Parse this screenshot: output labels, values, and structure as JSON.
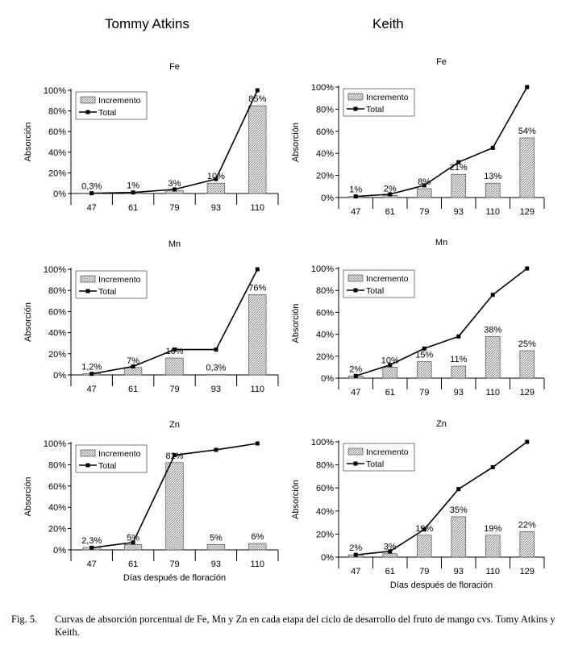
{
  "columns": {
    "left": "Tommy Atkins",
    "right": "Keith"
  },
  "caption": {
    "label": "Fig. 5.",
    "text": "Curvas de absorción porcentual de Fe, Mn y Zn en cada etapa del ciclo de desarrollo del fruto de mango cvs. Tomy Atkins y Keith."
  },
  "chart_data": [
    {
      "type": "bar",
      "cultivar": "Tommy Atkins",
      "title": "Fe",
      "ylabel": "Absorción",
      "xlabel": "",
      "categories": [
        "47",
        "61",
        "79",
        "93",
        "110"
      ],
      "yticks": [
        "0%",
        "20%",
        "40%",
        "60%",
        "80%",
        "100%"
      ],
      "ylim": [
        0,
        100
      ],
      "series": [
        {
          "name": "Incremento",
          "values": [
            0.3,
            1,
            3,
            10,
            85
          ],
          "labels": [
            "0,3%",
            "1%",
            "3%",
            "10%",
            "85%"
          ]
        },
        {
          "name": "Total",
          "values": [
            0.3,
            1,
            4,
            14,
            100
          ]
        }
      ],
      "legend": "top-left",
      "grid": false
    },
    {
      "type": "bar",
      "cultivar": "Keith",
      "title": "Fe",
      "ylabel": "Absorción",
      "xlabel": "",
      "categories": [
        "47",
        "61",
        "79",
        "93",
        "110",
        "129"
      ],
      "yticks": [
        "0%",
        "20%",
        "40%",
        "60%",
        "80%",
        "100%"
      ],
      "ylim": [
        0,
        100
      ],
      "series": [
        {
          "name": "Incremento",
          "values": [
            1,
            2,
            8,
            21,
            13,
            54
          ],
          "labels": [
            "1%",
            "2%",
            "8%",
            "21%",
            "13%",
            "54%"
          ]
        },
        {
          "name": "Total",
          "values": [
            1,
            3,
            11,
            32,
            45,
            100
          ]
        }
      ],
      "legend": "top-left",
      "grid": false
    },
    {
      "type": "bar",
      "cultivar": "Tommy Atkins",
      "title": "Mn",
      "ylabel": "Absorción",
      "xlabel": "",
      "categories": [
        "47",
        "61",
        "79",
        "93",
        "110"
      ],
      "yticks": [
        "0%",
        "20%",
        "40%",
        "60%",
        "80%",
        "100%"
      ],
      "ylim": [
        0,
        100
      ],
      "series": [
        {
          "name": "Incremento",
          "values": [
            1.2,
            7,
            16,
            0.3,
            76
          ],
          "labels": [
            "1,2%",
            "7%",
            "16%",
            "0,3%",
            "76%"
          ]
        },
        {
          "name": "Total",
          "values": [
            1,
            8,
            24,
            24,
            100
          ]
        }
      ],
      "legend": "top-left",
      "grid": false
    },
    {
      "type": "bar",
      "cultivar": "Keith",
      "title": "Mn",
      "ylabel": "Absorción",
      "xlabel": "",
      "categories": [
        "47",
        "61",
        "79",
        "93",
        "110",
        "129"
      ],
      "yticks": [
        "0%",
        "20%",
        "40%",
        "60%",
        "80%",
        "100%"
      ],
      "ylim": [
        0,
        100
      ],
      "series": [
        {
          "name": "Incremento",
          "values": [
            2,
            10,
            15,
            11,
            38,
            25
          ],
          "labels": [
            "2%",
            "10%",
            "15%",
            "11%",
            "38%",
            "25%"
          ]
        },
        {
          "name": "Total",
          "values": [
            2,
            12,
            27,
            38,
            76,
            100
          ]
        }
      ],
      "legend": "top-left",
      "grid": false
    },
    {
      "type": "bar",
      "cultivar": "Tommy Atkins",
      "title": "Zn",
      "ylabel": "Absorción",
      "xlabel": "Días después de floración",
      "categories": [
        "47",
        "61",
        "79",
        "93",
        "110"
      ],
      "yticks": [
        "0%",
        "20%",
        "40%",
        "60%",
        "80%",
        "100%"
      ],
      "ylim": [
        0,
        100
      ],
      "series": [
        {
          "name": "Incremento",
          "values": [
            2.3,
            5,
            82,
            5,
            6
          ],
          "labels": [
            "2,3%",
            "5%",
            "82%",
            "5%",
            "6%"
          ]
        },
        {
          "name": "Total",
          "values": [
            2,
            7,
            89,
            94,
            100
          ]
        }
      ],
      "legend": "top-left",
      "grid": false
    },
    {
      "type": "bar",
      "cultivar": "Keith",
      "title": "Zn",
      "ylabel": "Absorción",
      "xlabel": "Días después de floración",
      "categories": [
        "47",
        "61",
        "79",
        "93",
        "110",
        "129"
      ],
      "yticks": [
        "0%",
        "20%",
        "40%",
        "60%",
        "80%",
        "100%"
      ],
      "ylim": [
        0,
        100
      ],
      "series": [
        {
          "name": "Incremento",
          "values": [
            2,
            3,
            19,
            35,
            19,
            22
          ],
          "labels": [
            "2%",
            "3%",
            "19%",
            "35%",
            "19%",
            "22%"
          ]
        },
        {
          "name": "Total",
          "values": [
            2,
            5,
            24,
            59,
            78,
            100
          ]
        }
      ],
      "legend": "top-left",
      "grid": false
    }
  ]
}
